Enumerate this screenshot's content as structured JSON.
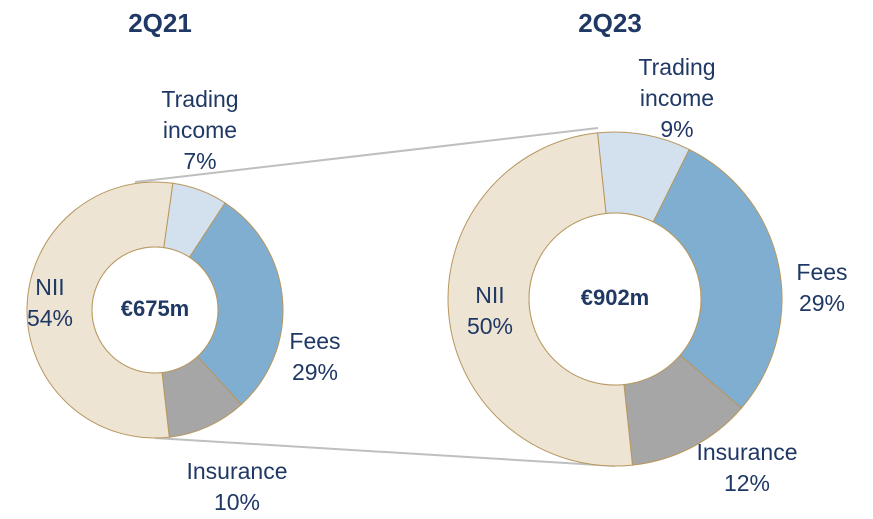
{
  "chart_data": [
    {
      "type": "donut",
      "title": "2Q21",
      "center_label": "€675m",
      "categories": [
        "Trading income",
        "Fees",
        "Insurance",
        "NII"
      ],
      "values": [
        7,
        29,
        10,
        54
      ],
      "value_labels": [
        "7%",
        "29%",
        "10%",
        "54%"
      ],
      "colors": [
        "#d2e1ed",
        "#80aed0",
        "#a6a6a6",
        "#ede4d3"
      ]
    },
    {
      "type": "donut",
      "title": "2Q23",
      "center_label": "€902m",
      "categories": [
        "Trading income",
        "Fees",
        "Insurance",
        "NII"
      ],
      "values": [
        9,
        29,
        12,
        50
      ],
      "value_labels": [
        "9%",
        "29%",
        "12%",
        "50%"
      ],
      "colors": [
        "#d2e1ed",
        "#80aed0",
        "#a6a6a6",
        "#ede4d3"
      ]
    }
  ]
}
